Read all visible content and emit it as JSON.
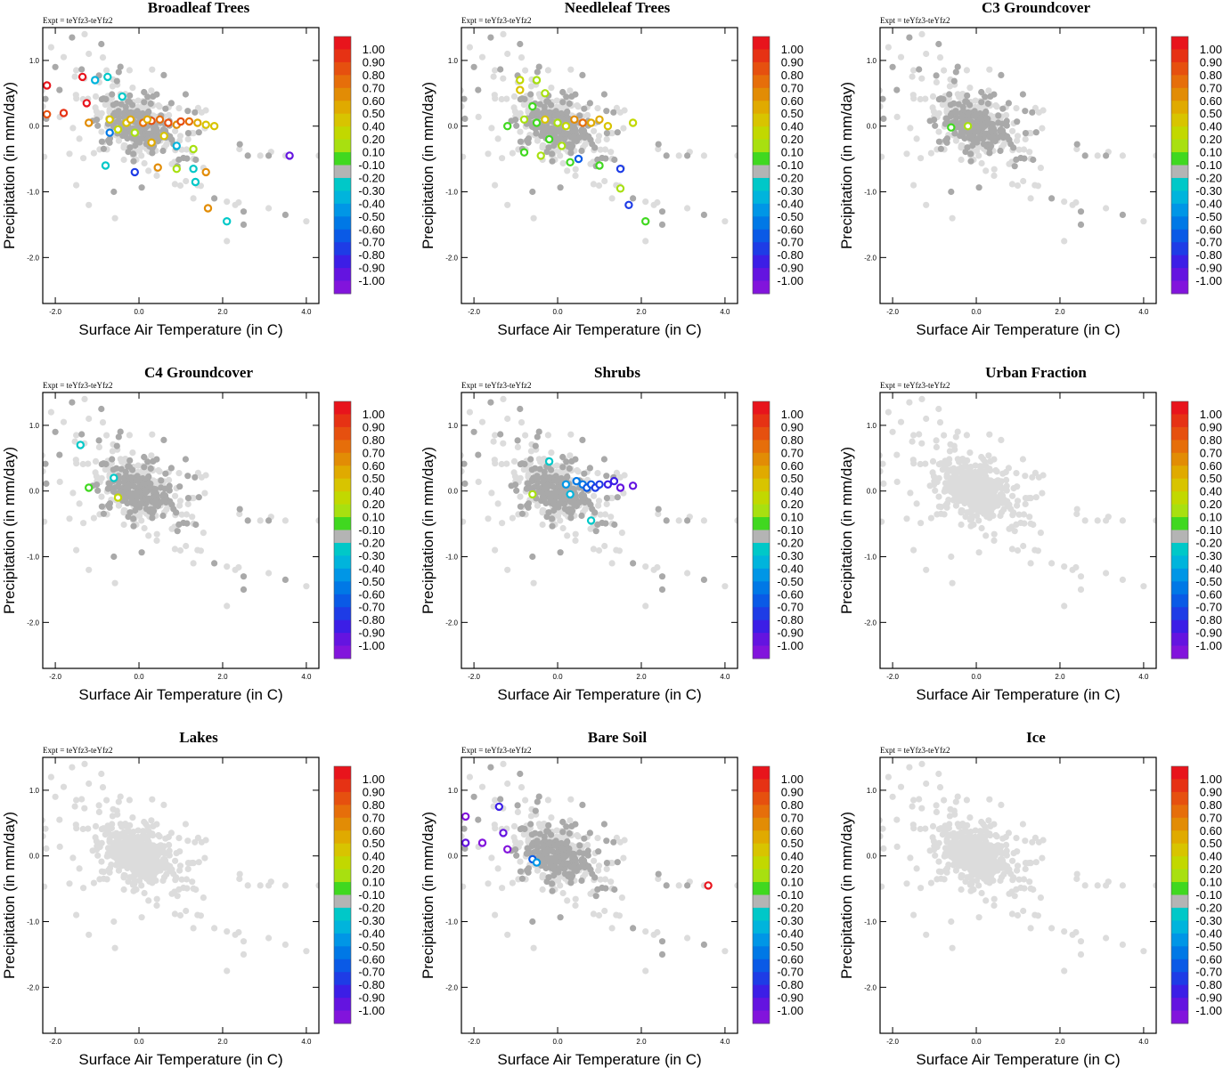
{
  "figure": {
    "experiment_label": "Expt = teYfz3-teYfz2",
    "xlabel": "Surface Air Temperature (in C)",
    "ylabel": "Precipitation (in mm/day)",
    "xlim": [
      -2.3,
      4.3
    ],
    "ylim": [
      -2.7,
      1.5
    ],
    "xticks": [
      -2.0,
      0.0,
      2.0,
      4.0
    ],
    "xtick_labels": [
      "-2.0",
      "0.0",
      "2.0",
      "4.0"
    ],
    "yticks": [
      1.0,
      0.0,
      -1.0,
      -2.0
    ],
    "ytick_labels": [
      "1.0",
      "0.0",
      "-1.0",
      "-2.0"
    ]
  },
  "colorbar": {
    "labels": [
      "1.00",
      "0.90",
      "0.80",
      "0.70",
      "0.60",
      "0.50",
      "0.40",
      "0.20",
      "0.10",
      "-0.10",
      "-0.20",
      "-0.30",
      "-0.40",
      "-0.50",
      "-0.60",
      "-0.70",
      "-0.80",
      "-0.90",
      "-1.00"
    ],
    "colors": [
      "#e8141c",
      "#e63214",
      "#e6500f",
      "#e66e0a",
      "#e28c05",
      "#e0aa00",
      "#d8c400",
      "#c2d800",
      "#a8e010",
      "#40d820",
      "#b4b4b4",
      "#00c8c8",
      "#00b4dc",
      "#0096e6",
      "#0078e6",
      "#0a5ae6",
      "#1e3ce6",
      "#3c1ee6",
      "#6414e0",
      "#8214dc"
    ]
  },
  "chart_data": [
    {
      "type": "scatter",
      "title": "Broadleaf Trees",
      "highlighted_points": [
        {
          "x": -2.2,
          "y": 0.62,
          "v": 1.0
        },
        {
          "x": -1.35,
          "y": 0.75,
          "v": 1.0
        },
        {
          "x": -1.25,
          "y": 0.35,
          "v": 1.0
        },
        {
          "x": -1.8,
          "y": 0.2,
          "v": 0.9
        },
        {
          "x": -2.2,
          "y": 0.18,
          "v": 0.8
        },
        {
          "x": -0.75,
          "y": 0.75,
          "v": -0.2
        },
        {
          "x": -1.05,
          "y": 0.7,
          "v": -0.3
        },
        {
          "x": -0.4,
          "y": 0.45,
          "v": -0.2
        },
        {
          "x": -1.2,
          "y": 0.05,
          "v": 0.6
        },
        {
          "x": -0.7,
          "y": 0.1,
          "v": 0.4
        },
        {
          "x": -0.5,
          "y": -0.05,
          "v": 0.3
        },
        {
          "x": -0.3,
          "y": 0.05,
          "v": 0.4
        },
        {
          "x": -0.1,
          "y": -0.1,
          "v": 0.2
        },
        {
          "x": 0.1,
          "y": 0.05,
          "v": 0.7
        },
        {
          "x": 0.3,
          "y": 0.08,
          "v": 0.8
        },
        {
          "x": 0.5,
          "y": 0.1,
          "v": 0.7
        },
        {
          "x": 0.7,
          "y": 0.05,
          "v": 0.8
        },
        {
          "x": 0.9,
          "y": 0.02,
          "v": 0.6
        },
        {
          "x": 1.0,
          "y": 0.07,
          "v": 0.8
        },
        {
          "x": 1.2,
          "y": 0.07,
          "v": 0.7
        },
        {
          "x": 1.4,
          "y": 0.05,
          "v": 0.5
        },
        {
          "x": 1.6,
          "y": 0.02,
          "v": 0.4
        },
        {
          "x": 1.8,
          "y": 0.0,
          "v": 0.4
        },
        {
          "x": 0.2,
          "y": 0.1,
          "v": 0.5
        },
        {
          "x": -0.2,
          "y": 0.1,
          "v": 0.5
        },
        {
          "x": 0.6,
          "y": -0.15,
          "v": 0.4
        },
        {
          "x": 0.3,
          "y": -0.25,
          "v": 0.5
        },
        {
          "x": 1.3,
          "y": -0.35,
          "v": 0.2
        },
        {
          "x": 0.9,
          "y": -0.3,
          "v": -0.3
        },
        {
          "x": -0.8,
          "y": -0.6,
          "v": -0.2
        },
        {
          "x": -0.1,
          "y": -0.7,
          "v": -0.7
        },
        {
          "x": 0.45,
          "y": -0.63,
          "v": 0.6
        },
        {
          "x": 0.9,
          "y": -0.65,
          "v": 0.2
        },
        {
          "x": 1.3,
          "y": -0.65,
          "v": -0.2
        },
        {
          "x": 1.6,
          "y": -0.7,
          "v": 0.6
        },
        {
          "x": 1.35,
          "y": -0.85,
          "v": -0.2
        },
        {
          "x": 1.65,
          "y": -1.25,
          "v": 0.6
        },
        {
          "x": 2.1,
          "y": -1.45,
          "v": -0.2
        },
        {
          "x": 3.6,
          "y": -0.45,
          "v": -0.9
        },
        {
          "x": -0.7,
          "y": -0.1,
          "v": -0.5
        }
      ]
    },
    {
      "type": "scatter",
      "title": "Needleleaf Trees",
      "highlighted_points": [
        {
          "x": -0.9,
          "y": 0.7,
          "v": 0.3
        },
        {
          "x": -0.5,
          "y": 0.7,
          "v": 0.2
        },
        {
          "x": -0.9,
          "y": 0.55,
          "v": 0.4
        },
        {
          "x": -0.3,
          "y": 0.5,
          "v": 0.2
        },
        {
          "x": -0.6,
          "y": 0.3,
          "v": 0.1
        },
        {
          "x": -1.2,
          "y": 0.0,
          "v": 0.1
        },
        {
          "x": -0.8,
          "y": 0.1,
          "v": 0.2
        },
        {
          "x": -0.5,
          "y": 0.05,
          "v": 0.1
        },
        {
          "x": -0.3,
          "y": 0.1,
          "v": 0.4
        },
        {
          "x": 0.0,
          "y": 0.05,
          "v": 0.2
        },
        {
          "x": 0.2,
          "y": 0.0,
          "v": 0.3
        },
        {
          "x": 0.4,
          "y": 0.1,
          "v": 0.6
        },
        {
          "x": 0.6,
          "y": 0.05,
          "v": 0.7
        },
        {
          "x": 0.8,
          "y": 0.05,
          "v": 0.5
        },
        {
          "x": 1.0,
          "y": 0.1,
          "v": 0.5
        },
        {
          "x": 1.2,
          "y": 0.0,
          "v": 0.4
        },
        {
          "x": 1.8,
          "y": 0.05,
          "v": 0.3
        },
        {
          "x": -0.2,
          "y": -0.2,
          "v": 0.1
        },
        {
          "x": -0.8,
          "y": -0.4,
          "v": 0.1
        },
        {
          "x": -0.4,
          "y": -0.45,
          "v": 0.2
        },
        {
          "x": 0.3,
          "y": -0.55,
          "v": 0.1
        },
        {
          "x": 0.5,
          "y": -0.5,
          "v": -0.6
        },
        {
          "x": 1.0,
          "y": -0.6,
          "v": 0.1
        },
        {
          "x": 1.5,
          "y": -0.65,
          "v": -0.7
        },
        {
          "x": 1.5,
          "y": -0.95,
          "v": 0.2
        },
        {
          "x": 1.7,
          "y": -1.2,
          "v": -0.7
        },
        {
          "x": 2.1,
          "y": -1.45,
          "v": 0.1
        },
        {
          "x": 0.1,
          "y": -0.3,
          "v": 0.2
        }
      ]
    },
    {
      "type": "scatter",
      "title": "C3 Groundcover",
      "highlighted_points": [
        {
          "x": -0.6,
          "y": -0.02,
          "v": 0.1
        },
        {
          "x": -0.2,
          "y": 0.0,
          "v": 0.2
        }
      ]
    },
    {
      "type": "scatter",
      "title": "C4 Groundcover",
      "highlighted_points": [
        {
          "x": -1.4,
          "y": 0.7,
          "v": -0.2
        },
        {
          "x": -1.2,
          "y": 0.05,
          "v": 0.1
        },
        {
          "x": -0.6,
          "y": 0.2,
          "v": -0.2
        },
        {
          "x": -0.5,
          "y": -0.1,
          "v": 0.3
        }
      ]
    },
    {
      "type": "scatter",
      "title": "Shrubs",
      "highlighted_points": [
        {
          "x": -0.2,
          "y": 0.45,
          "v": -0.2
        },
        {
          "x": 0.2,
          "y": 0.1,
          "v": -0.4
        },
        {
          "x": 0.45,
          "y": 0.15,
          "v": -0.5
        },
        {
          "x": 0.6,
          "y": 0.1,
          "v": -0.5
        },
        {
          "x": 0.7,
          "y": 0.05,
          "v": -0.6
        },
        {
          "x": 0.8,
          "y": 0.1,
          "v": -0.6
        },
        {
          "x": 0.9,
          "y": 0.05,
          "v": -0.7
        },
        {
          "x": 1.0,
          "y": 0.1,
          "v": -0.7
        },
        {
          "x": 1.2,
          "y": 0.1,
          "v": -0.8
        },
        {
          "x": 1.35,
          "y": 0.15,
          "v": -0.8
        },
        {
          "x": 1.5,
          "y": 0.05,
          "v": -0.9
        },
        {
          "x": 1.8,
          "y": 0.08,
          "v": -0.9
        },
        {
          "x": -0.6,
          "y": -0.05,
          "v": 0.2
        },
        {
          "x": 0.8,
          "y": -0.45,
          "v": -0.2
        },
        {
          "x": 0.3,
          "y": -0.05,
          "v": -0.3
        }
      ]
    },
    {
      "type": "scatter",
      "title": "Urban Fraction",
      "highlighted_points": []
    },
    {
      "type": "scatter",
      "title": "Lakes",
      "highlighted_points": []
    },
    {
      "type": "scatter",
      "title": "Bare Soil",
      "highlighted_points": [
        {
          "x": -2.2,
          "y": 0.6,
          "v": -1.0
        },
        {
          "x": -1.4,
          "y": 0.75,
          "v": -0.8
        },
        {
          "x": -1.3,
          "y": 0.35,
          "v": -0.9
        },
        {
          "x": -2.2,
          "y": 0.2,
          "v": -0.9
        },
        {
          "x": -1.8,
          "y": 0.2,
          "v": -1.0
        },
        {
          "x": -1.2,
          "y": 0.1,
          "v": -1.0
        },
        {
          "x": -0.6,
          "y": -0.05,
          "v": -0.6
        },
        {
          "x": -0.5,
          "y": -0.1,
          "v": -0.4
        },
        {
          "x": 3.6,
          "y": -0.45,
          "v": 1.0
        }
      ]
    },
    {
      "type": "scatter",
      "title": "Ice",
      "highlighted_points": []
    }
  ]
}
